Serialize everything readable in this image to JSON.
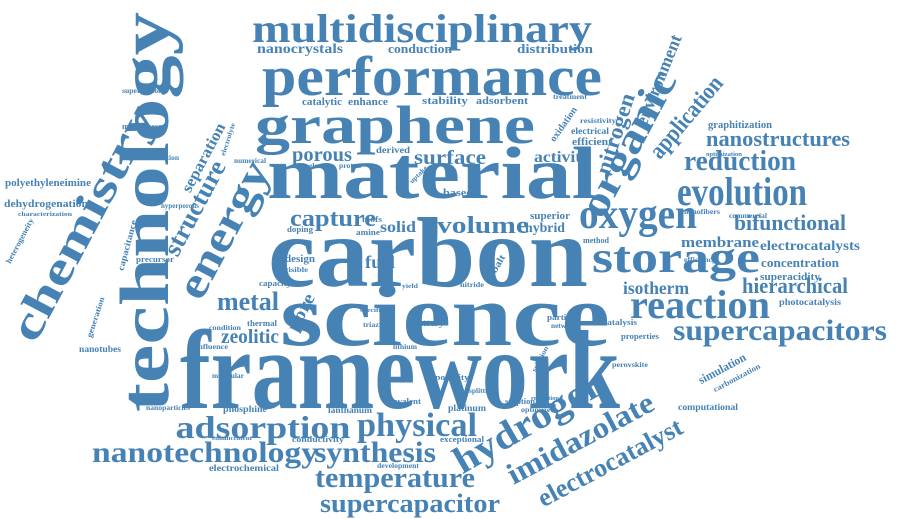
{
  "cloud": {
    "color": "#4682b4",
    "words": [
      "framework",
      "carbon",
      "science",
      "material",
      "technology",
      "performance",
      "graphene",
      "multidisciplinary",
      "chemistry",
      "energy",
      "storage",
      "oxygen",
      "reaction",
      "evolution",
      "organic",
      "supercapacitors",
      "hydrogen",
      "physical",
      "adsorption",
      "nanotechnology",
      "synthesis",
      "imidazolate",
      "temperature",
      "supercapacitor",
      "electrocatalyst",
      "reduction",
      "nanostructures",
      "application",
      "bifunctional",
      "hierarchical",
      "structure",
      "metal",
      "capture",
      "volume",
      "porous",
      "surface",
      "zeolitic",
      "isotherm",
      "membrane",
      "electrocatalysts",
      "nitrogen",
      "environment",
      "activity",
      "separation",
      "nanocrystals",
      "conduction",
      "distribution",
      "fuel",
      "solid",
      "hybrid",
      "superior",
      "concentration",
      "superacidity",
      "photocatalysis",
      "graphitization",
      "polyethyleneimine",
      "dehydrogenation",
      "heterogeneity",
      "nanotubes",
      "phosphine",
      "lanthanum",
      "platinum",
      "porosity",
      "covalent",
      "conductivity",
      "electrochemical",
      "computational",
      "simulation",
      "carbonization",
      "perovskite",
      "catalysis",
      "particle",
      "network",
      "battery",
      "lithium",
      "nitride",
      "catalytic",
      "enhance",
      "stability",
      "adsorbent",
      "oxidation",
      "electrical",
      "efficient",
      "resistivity",
      "treatment",
      "superprotonic",
      "manganese",
      "diffraction",
      "capacitance",
      "precursor",
      "generation",
      "derived",
      "numerical",
      "electron",
      "proton",
      "pore",
      "mofs",
      "amine",
      "design",
      "doping",
      "based",
      "cobalt",
      "capacity",
      "thermal",
      "influence",
      "condition",
      "molecular",
      "exceptional",
      "development",
      "optimized",
      "sorption",
      "nanofibers",
      "commercial",
      "method",
      "properties",
      "solution",
      "efficiency",
      "optimization",
      "splitting",
      "relaxation",
      "hyperporous",
      "characterization",
      "electrolyte",
      "nanoparticles",
      "enhancement",
      "specific",
      "uptake",
      "triazine",
      "yield",
      "visible"
    ]
  }
}
